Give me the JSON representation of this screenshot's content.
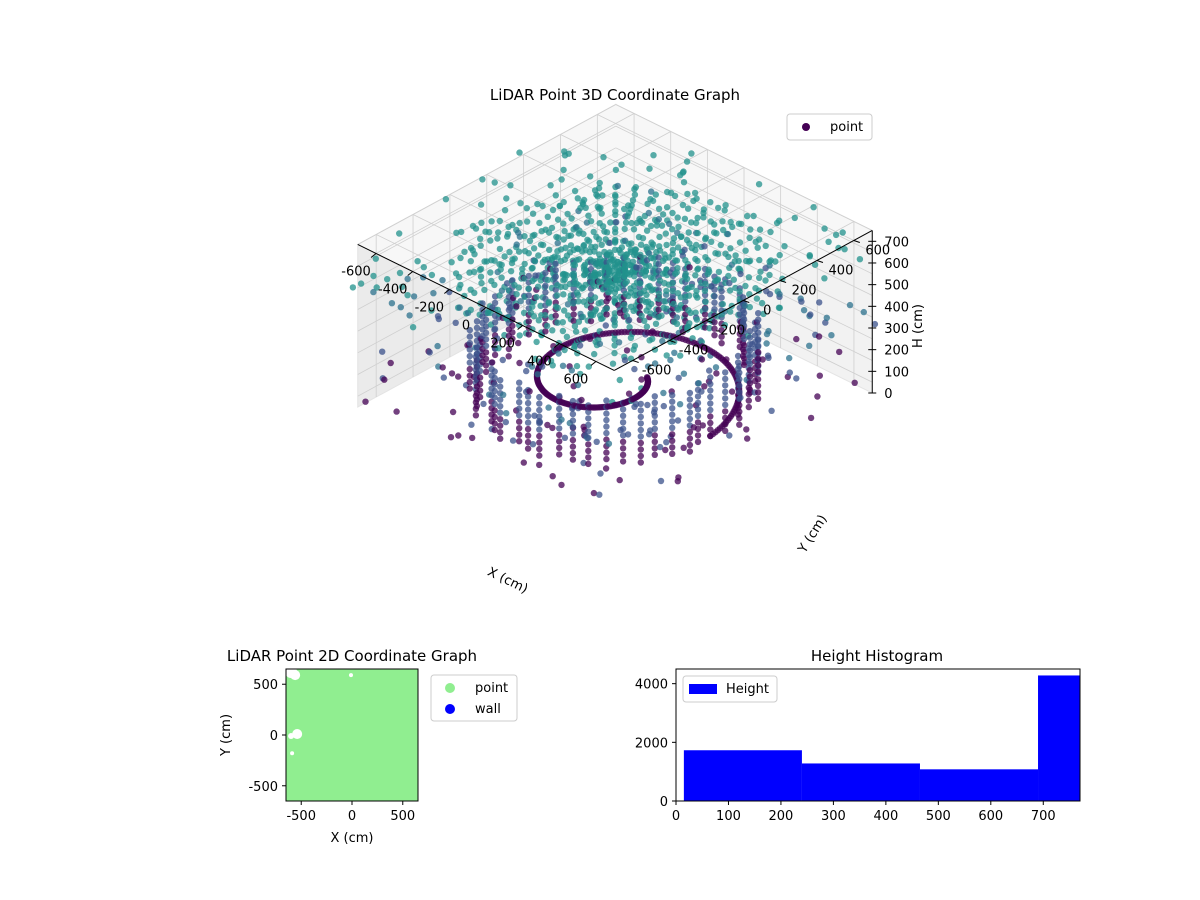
{
  "chart_data": [
    {
      "type": "scatter3d",
      "title": "LiDAR Point 3D Coordinate Graph",
      "xlabel": "X (cm)",
      "ylabel": "Y (cm)",
      "zlabel": "H (cm)",
      "xlim": [
        -700,
        700
      ],
      "ylim": [
        -700,
        700
      ],
      "zlim": [
        0,
        750
      ],
      "x_ticks": [
        -600,
        -400,
        -200,
        0,
        200,
        400,
        600
      ],
      "y_ticks": [
        -600,
        -400,
        -200,
        0,
        200,
        400,
        600
      ],
      "z_ticks": [
        0,
        100,
        200,
        300,
        400,
        500,
        600,
        700
      ],
      "z_inverted": true,
      "legend": {
        "entries": [
          "point"
        ],
        "location": "upper right"
      },
      "colormap": [
        "#440154",
        "#3b528b",
        "#2c718e",
        "#21918c",
        "#5ec962"
      ],
      "grid": true
    },
    {
      "type": "scatter",
      "title": "LiDAR Point 2D Coordinate Graph",
      "xlabel": "X (cm)",
      "ylabel": "Y (cm)",
      "xlim": [
        -650,
        650
      ],
      "ylim": [
        -650,
        650
      ],
      "x_ticks": [
        -500,
        0,
        500
      ],
      "y_ticks": [
        -500,
        0,
        500
      ],
      "series": [
        {
          "name": "point",
          "color": "#90ee90"
        },
        {
          "name": "wall",
          "color": "#0000ff"
        }
      ],
      "legend": {
        "location": "outside right"
      }
    },
    {
      "type": "bar",
      "title": "Height Histogram",
      "xlim": [
        0,
        770
      ],
      "ylim": [
        0,
        4500
      ],
      "x_ticks": [
        0,
        100,
        200,
        300,
        400,
        500,
        600,
        700
      ],
      "y_ticks": [
        0,
        2000,
        4000
      ],
      "bins": [
        {
          "start": 15,
          "end": 240,
          "value": 1730
        },
        {
          "start": 240,
          "end": 465,
          "value": 1280
        },
        {
          "start": 465,
          "end": 690,
          "value": 1080
        },
        {
          "start": 690,
          "end": 770,
          "value": 4280
        }
      ],
      "series": [
        {
          "name": "Height",
          "color": "#0000ff"
        }
      ],
      "legend": {
        "location": "upper left"
      }
    }
  ]
}
